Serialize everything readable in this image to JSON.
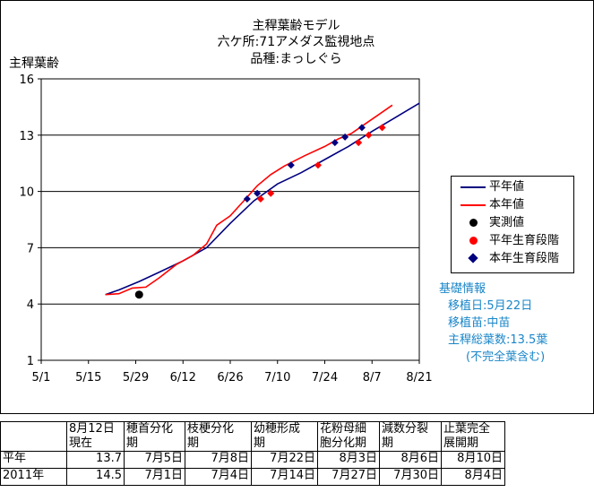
{
  "title_lines": [
    "主稈葉齢モデル",
    "六ケ所:71アメダス監視地点",
    "品種:まっしぐら"
  ],
  "chart_data": {
    "type": "line",
    "title": "主稈葉齢モデル",
    "subtitle": "六ケ所:71アメダス監視地点 / 品種:まっしぐら",
    "ylabel": "主稈葉齢",
    "xlabel": "",
    "xlim": [
      "5/1",
      "8/21"
    ],
    "ylim": [
      1,
      16
    ],
    "x_ticks": [
      "5/1",
      "5/15",
      "5/29",
      "6/12",
      "6/26",
      "7/10",
      "7/24",
      "8/7",
      "8/21"
    ],
    "y_ticks": [
      1,
      4,
      7,
      10,
      13,
      16
    ],
    "grid": "horizontal",
    "legend_position": "right",
    "series": [
      {
        "name": "平年値",
        "kind": "line",
        "color": "#000080",
        "x": [
          "5/20",
          "5/24",
          "5/30",
          "6/5",
          "6/12",
          "6/19",
          "6/26",
          "7/3",
          "7/10",
          "7/17",
          "7/24",
          "7/31",
          "8/7",
          "8/14",
          "8/21"
        ],
        "y": [
          4.5,
          4.75,
          5.2,
          5.7,
          6.3,
          7.0,
          8.3,
          9.5,
          10.4,
          11.0,
          11.7,
          12.4,
          13.2,
          13.95,
          14.7
        ]
      },
      {
        "name": "本年値",
        "kind": "line",
        "color": "#ff0000",
        "x": [
          "5/20",
          "5/24",
          "5/28",
          "6/1",
          "6/5",
          "6/10",
          "6/15",
          "6/19",
          "6/22",
          "6/26",
          "6/30",
          "7/4",
          "7/8",
          "7/12",
          "7/18",
          "7/24",
          "7/28",
          "8/1",
          "8/5",
          "8/9",
          "8/13"
        ],
        "y": [
          4.5,
          4.55,
          4.85,
          4.9,
          5.4,
          6.1,
          6.6,
          7.2,
          8.2,
          8.7,
          9.5,
          10.3,
          10.9,
          11.35,
          11.9,
          12.4,
          12.8,
          13.1,
          13.6,
          14.1,
          14.6
        ]
      },
      {
        "name": "実測値",
        "kind": "point",
        "color": "#000000",
        "marker": "circle",
        "x": [
          "5/30"
        ],
        "y": [
          4.5
        ]
      },
      {
        "name": "平年生育段階",
        "kind": "point",
        "color": "#ff0000",
        "marker": "diamond",
        "x": [
          "7/5",
          "7/8",
          "7/22",
          "8/3",
          "8/6",
          "8/10"
        ],
        "y": [
          9.6,
          9.9,
          11.4,
          12.6,
          13.0,
          13.4
        ]
      },
      {
        "name": "本年生育段階",
        "kind": "point",
        "color": "#000080",
        "marker": "diamond",
        "x": [
          "7/1",
          "7/4",
          "7/14",
          "7/27",
          "7/30",
          "8/4"
        ],
        "y": [
          9.6,
          9.9,
          11.4,
          12.6,
          12.9,
          13.4
        ]
      }
    ]
  },
  "legend": {
    "items": [
      {
        "label": "平年値",
        "color": "#000080",
        "marker": "line"
      },
      {
        "label": "本年値",
        "color": "#ff0000",
        "marker": "line"
      },
      {
        "label": "実測値",
        "color": "#000000",
        "marker": "circle"
      },
      {
        "label": "平年生育段階",
        "color": "#ff0000",
        "marker": "diamond"
      },
      {
        "label": "本年生育段階",
        "color": "#000080",
        "marker": "diamond"
      }
    ]
  },
  "info": {
    "heading": "基礎情報",
    "lines": [
      "移植日:5月22日",
      "移植苗:中苗",
      "主稈総葉数:13.5葉",
      "(不完全葉含む)"
    ]
  },
  "table": {
    "headers": [
      [
        "8月12日",
        "現在"
      ],
      [
        "穂首分化",
        "期"
      ],
      [
        "枝梗分化",
        "期"
      ],
      [
        "幼穂形成",
        "期"
      ],
      [
        "花粉母細",
        "胞分化期"
      ],
      [
        "減数分裂",
        "期"
      ],
      [
        "止葉完全",
        "展開期"
      ]
    ],
    "rows": [
      {
        "label": "平年",
        "values": [
          "13.7",
          "7月5日",
          "7月8日",
          "7月22日",
          "8月3日",
          "8月6日",
          "8月10日"
        ]
      },
      {
        "label": "2011年",
        "values": [
          "14.5",
          "7月1日",
          "7月4日",
          "7月14日",
          "7月27日",
          "7月30日",
          "8月4日"
        ]
      }
    ]
  }
}
